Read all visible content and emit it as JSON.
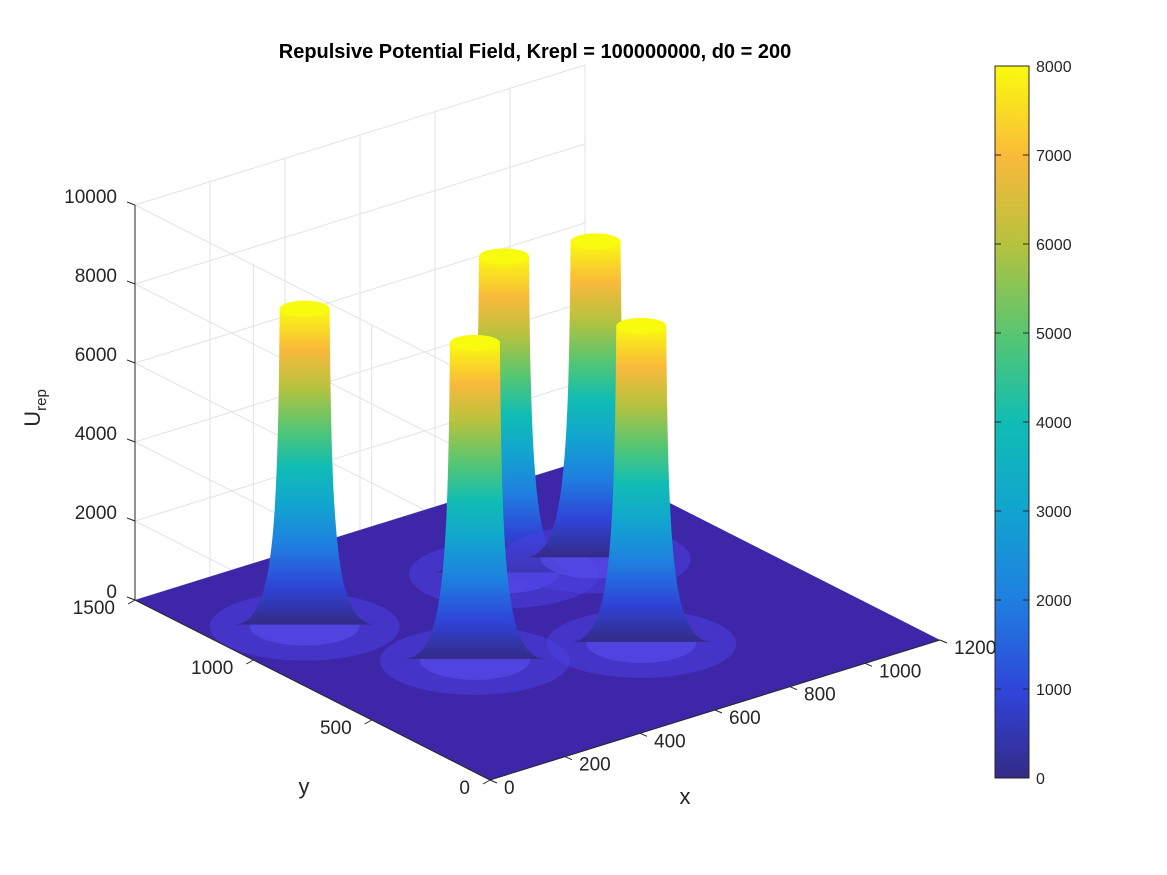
{
  "chart_data": {
    "type": "surface",
    "title": "Repulsive Potential Field, Krepl = 100000000, d0 = 200",
    "xlabel": "x",
    "ylabel": "y",
    "zlabel_main": "U",
    "zlabel_sub": "rep",
    "xlim": [
      0,
      1200
    ],
    "ylim": [
      0,
      1500
    ],
    "zlim": [
      0,
      10000
    ],
    "x_ticks": [
      "0",
      "200",
      "400",
      "600",
      "800",
      "1000",
      "1200"
    ],
    "y_ticks": [
      "0",
      "500",
      "1000",
      "1500"
    ],
    "z_ticks": [
      "0",
      "2000",
      "4000",
      "6000",
      "8000",
      "10000"
    ],
    "grid": true,
    "colormap": "parula",
    "colorbar": {
      "range": [
        0,
        8000
      ],
      "ticks": [
        "0",
        "1000",
        "2000",
        "3000",
        "4000",
        "5000",
        "6000",
        "7000",
        "8000"
      ]
    },
    "obstacles": [
      {
        "x": 200,
        "y": 1100,
        "peak": 8000
      },
      {
        "x": 370,
        "y": 650,
        "peak": 8000
      },
      {
        "x": 700,
        "y": 470,
        "peak": 8000
      },
      {
        "x": 700,
        "y": 1050,
        "peak": 8000
      },
      {
        "x": 900,
        "y": 980,
        "peak": 8000
      }
    ]
  },
  "colors": {
    "floor": "#3d27a8",
    "grid": "#e3e3e3",
    "axis": "#262626"
  }
}
